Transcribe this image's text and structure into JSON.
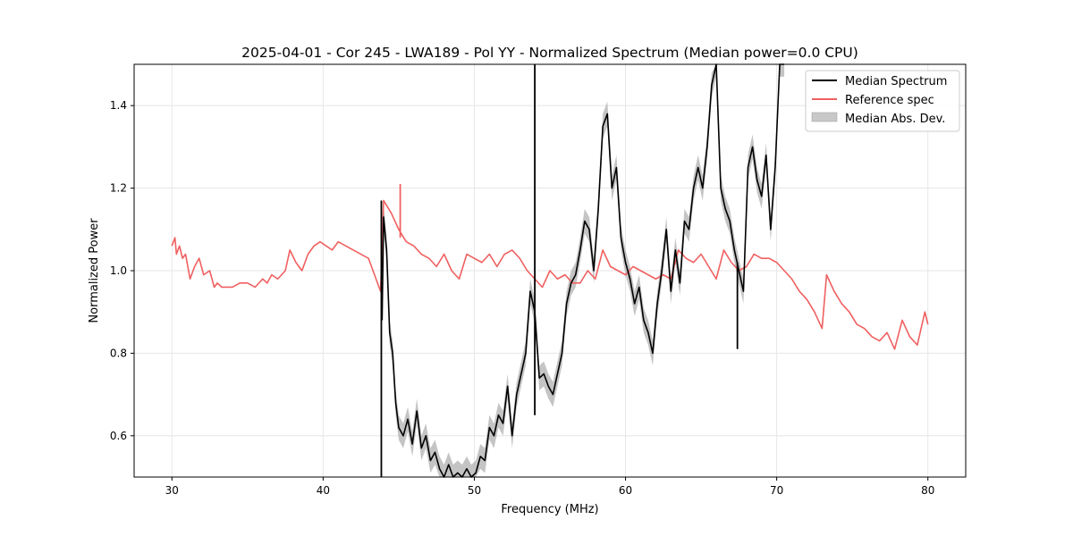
{
  "chart_data": {
    "type": "line",
    "title": "2025-04-01 - Cor 245 - LWA189 - Pol YY - Normalized Spectrum (Median power=0.0 CPU)",
    "xlabel": "Frequency (MHz)",
    "ylabel": "Normalized Power",
    "xlim": [
      27.5,
      82.5
    ],
    "ylim": [
      0.5,
      1.5
    ],
    "xticks": [
      30,
      40,
      50,
      60,
      70,
      80
    ],
    "yticks": [
      0.6,
      0.8,
      1.0,
      1.2,
      1.4
    ],
    "xtick_labels": [
      "30",
      "40",
      "50",
      "60",
      "70",
      "80"
    ],
    "ytick_labels": [
      "0.6",
      "0.8",
      "1.0",
      "1.2",
      "1.4"
    ],
    "grid": true,
    "legend_position": "top-right",
    "legend": {
      "median": "Median Spectrum",
      "reference": "Reference spec",
      "mad": "Median Abs. Dev."
    },
    "colors": {
      "median": "#000000",
      "reference": "#f06060",
      "mad": "#b0b0b0"
    },
    "series": [
      {
        "name": "Reference spec",
        "x": [
          30,
          30.2,
          30.3,
          30.5,
          30.7,
          30.9,
          31.2,
          31.5,
          31.8,
          32.1,
          32.5,
          32.8,
          33.0,
          33.3,
          33.6,
          34.0,
          34.5,
          35.0,
          35.5,
          36.0,
          36.3,
          36.6,
          37.0,
          37.5,
          37.8,
          38.2,
          38.6,
          39.0,
          39.4,
          39.8,
          40.2,
          40.6,
          41.0,
          41.5,
          42.0,
          42.5,
          43.0,
          43.5,
          43.8,
          44.0,
          44.5,
          45.0,
          45.5,
          46.0,
          46.5,
          47.0,
          47.5,
          48.0,
          48.5,
          49.0,
          49.5,
          50.0,
          50.5,
          51.0,
          51.5,
          52.0,
          52.5,
          53.0,
          53.5,
          54.0,
          54.5,
          55.0,
          55.5,
          56.0,
          56.5,
          57.0,
          57.5,
          58.0,
          58.5,
          59.0,
          59.5,
          60.0,
          60.5,
          61.0,
          61.5,
          62.0,
          62.5,
          63.0,
          63.5,
          64.0,
          64.5,
          65.0,
          65.5,
          66.0,
          66.5,
          67.0,
          67.5,
          68.0,
          68.5,
          69.0,
          69.5,
          70.0,
          70.5,
          71.0,
          71.5,
          72.0,
          72.5,
          73.0,
          73.3,
          73.8,
          74.3,
          74.8,
          75.3,
          75.8,
          76.3,
          76.8,
          77.3,
          77.8,
          78.3,
          78.8,
          79.3,
          79.8,
          80.0
        ],
        "values": [
          1.06,
          1.08,
          1.04,
          1.06,
          1.03,
          1.04,
          0.98,
          1.01,
          1.03,
          0.99,
          1.0,
          0.96,
          0.97,
          0.96,
          0.96,
          0.96,
          0.97,
          0.97,
          0.96,
          0.98,
          0.97,
          0.99,
          0.98,
          1.0,
          1.05,
          1.02,
          1.0,
          1.04,
          1.06,
          1.07,
          1.06,
          1.05,
          1.07,
          1.06,
          1.05,
          1.04,
          1.03,
          0.98,
          0.95,
          1.17,
          1.14,
          1.1,
          1.07,
          1.06,
          1.04,
          1.03,
          1.01,
          1.04,
          1.0,
          0.98,
          1.04,
          1.03,
          1.02,
          1.04,
          1.01,
          1.04,
          1.05,
          1.03,
          1.0,
          0.98,
          0.96,
          1.0,
          0.98,
          0.99,
          0.97,
          0.97,
          1.0,
          0.98,
          1.05,
          1.01,
          1.0,
          0.99,
          1.01,
          1.0,
          0.99,
          0.98,
          0.99,
          0.98,
          1.05,
          1.03,
          1.02,
          1.04,
          1.01,
          0.98,
          1.05,
          1.02,
          1.0,
          1.01,
          1.04,
          1.03,
          1.03,
          1.02,
          1.0,
          0.98,
          0.95,
          0.93,
          0.9,
          0.86,
          0.99,
          0.95,
          0.92,
          0.9,
          0.87,
          0.86,
          0.84,
          0.83,
          0.85,
          0.81,
          0.88,
          0.84,
          0.82,
          0.9,
          0.87
        ]
      },
      {
        "name": "Median Spectrum",
        "x": [
          43.9,
          44.0,
          44.2,
          44.4,
          44.6,
          44.8,
          45.0,
          45.3,
          45.6,
          45.9,
          46.2,
          46.5,
          46.8,
          47.1,
          47.4,
          47.7,
          48.0,
          48.3,
          48.6,
          48.9,
          49.2,
          49.5,
          49.8,
          50.1,
          50.4,
          50.7,
          51.0,
          51.3,
          51.6,
          51.9,
          52.2,
          52.5,
          52.8,
          53.1,
          53.4,
          53.7,
          54.0,
          54.3,
          54.6,
          54.9,
          55.2,
          55.5,
          55.8,
          56.1,
          56.4,
          56.7,
          57.0,
          57.3,
          57.6,
          57.9,
          58.2,
          58.5,
          58.8,
          59.1,
          59.4,
          59.7,
          60.0,
          60.3,
          60.6,
          60.9,
          61.2,
          61.5,
          61.8,
          62.1,
          62.4,
          62.7,
          63.0,
          63.3,
          63.6,
          63.9,
          64.2,
          64.5,
          64.8,
          65.1,
          65.4,
          65.7,
          66.0,
          66.3,
          66.6,
          66.9,
          67.2,
          67.5,
          67.8,
          68.1,
          68.4,
          68.7,
          69.0,
          69.3,
          69.6,
          69.9,
          70.2,
          70.5
        ],
        "values": [
          0.88,
          1.13,
          1.05,
          0.85,
          0.8,
          0.68,
          0.62,
          0.6,
          0.64,
          0.58,
          0.66,
          0.57,
          0.6,
          0.54,
          0.56,
          0.52,
          0.5,
          0.53,
          0.5,
          0.51,
          0.5,
          0.52,
          0.5,
          0.51,
          0.55,
          0.54,
          0.62,
          0.6,
          0.65,
          0.63,
          0.72,
          0.6,
          0.7,
          0.75,
          0.8,
          0.95,
          0.9,
          0.74,
          0.75,
          0.72,
          0.7,
          0.75,
          0.8,
          0.92,
          0.97,
          0.99,
          1.05,
          1.12,
          1.1,
          1.0,
          1.15,
          1.35,
          1.38,
          1.2,
          1.25,
          1.08,
          1.02,
          0.98,
          0.92,
          0.96,
          0.88,
          0.85,
          0.8,
          0.92,
          1.0,
          1.1,
          0.95,
          1.05,
          0.97,
          1.12,
          1.1,
          1.2,
          1.25,
          1.2,
          1.3,
          1.45,
          1.5,
          1.2,
          1.15,
          1.12,
          1.05,
          1.0,
          0.95,
          1.25,
          1.3,
          1.22,
          1.18,
          1.28,
          1.1,
          1.25,
          1.5,
          1.5
        ]
      }
    ],
    "spikes": [
      {
        "x": 43.85,
        "from": 0.5,
        "to": 1.17
      },
      {
        "x": 54.0,
        "from": 0.65,
        "to": 1.5
      },
      {
        "x": 45.1,
        "from": 1.08,
        "to": 1.21
      },
      {
        "x": 67.4,
        "from": 0.81,
        "to": 1.02
      }
    ],
    "mad_width": 0.03
  }
}
